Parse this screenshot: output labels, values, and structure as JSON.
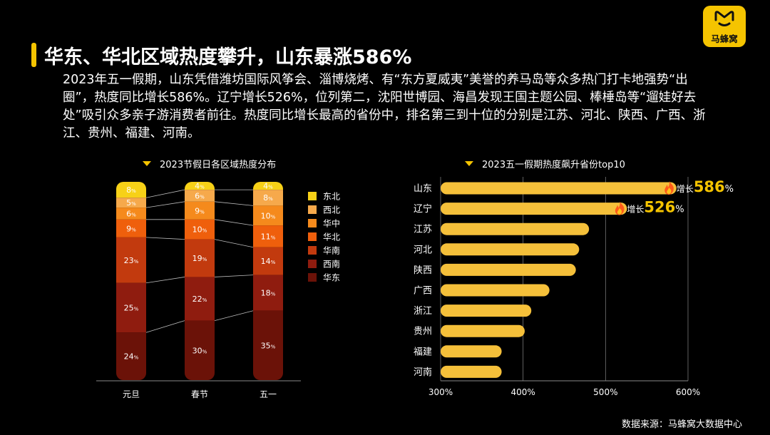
{
  "logo": {
    "name": "马蜂窝",
    "icon": "logo-m-icon",
    "color": "#f5c400"
  },
  "title": "华东、华北区域热度攀升，山东暴涨586%",
  "intro": "2023年五一假期，山东凭借潍坊国际风筝会、淄博烧烤、有“东方夏威夷”美誉的养马岛等众多热门打卡地强势“出圈”，热度同比增长586%。辽宁增长526%，位列第二，沈阳世博园、海昌发现王国主题公园、棒棰岛等“遛娃好去处”吸引众多亲子游消费者前往。热度同比增长最高的省份中，排名第三到十位的分别是江苏、河北、陕西、广西、浙江、贵州、福建、河南。",
  "source": "数据来源：马蜂窝大数据中心",
  "chart_data": [
    {
      "type": "bar",
      "stacked": true,
      "title": "2023节假日各区域热度分布",
      "categories": [
        "元旦",
        "春节",
        "五一"
      ],
      "unit": "%",
      "series": [
        {
          "name": "东北",
          "color": "#f7d117",
          "values": [
            8,
            4,
            4
          ]
        },
        {
          "name": "西北",
          "color": "#f6a94b",
          "values": [
            5,
            6,
            8
          ]
        },
        {
          "name": "华中",
          "color": "#f58a1c",
          "values": [
            6,
            9,
            10
          ]
        },
        {
          "name": "华北",
          "color": "#ef5f0c",
          "values": [
            9,
            10,
            11
          ]
        },
        {
          "name": "华南",
          "color": "#c23a0e",
          "values": [
            23,
            19,
            14
          ]
        },
        {
          "name": "西南",
          "color": "#8f1c0f",
          "values": [
            25,
            22,
            18
          ]
        },
        {
          "name": "华东",
          "color": "#6b1208",
          "values": [
            24,
            30,
            35
          ]
        }
      ],
      "legend_position": "right"
    },
    {
      "type": "bar",
      "orientation": "horizontal",
      "title": "2023五一假期热度飙升省份top10",
      "categories": [
        "山东",
        "辽宁",
        "江苏",
        "河北",
        "陕西",
        "广西",
        "浙江",
        "贵州",
        "福建",
        "河南"
      ],
      "values": [
        586,
        526,
        480,
        468,
        464,
        432,
        410,
        402,
        374,
        374
      ],
      "xlim": [
        300,
        600
      ],
      "xticks": [
        "300%",
        "400%",
        "500%",
        "600%"
      ],
      "grid": true,
      "bar_color": "#f5c03a",
      "annotations": [
        {
          "category": "山东",
          "prefix": "增长",
          "value": "586",
          "suffix": "%",
          "icon": "fire-icon"
        },
        {
          "category": "辽宁",
          "prefix": "增长",
          "value": "526",
          "suffix": "%",
          "icon": "fire-icon"
        }
      ]
    }
  ]
}
